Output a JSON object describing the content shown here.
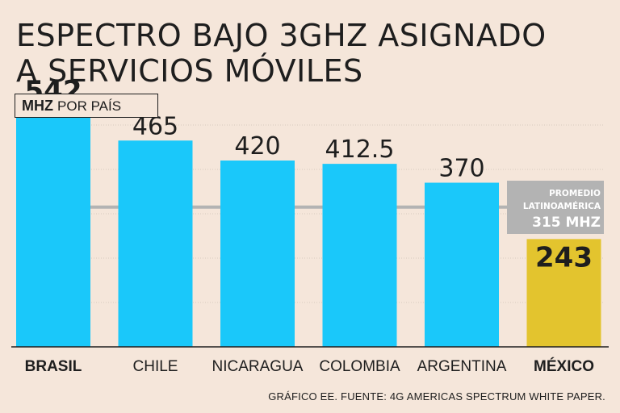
{
  "header": {
    "title_line1": "ESPECTRO BAJO 3GHZ ASIGNADO",
    "title_line2": "A SERVICIOS MÓVILES",
    "unit_bold": "MHZ",
    "unit_rest": "POR PAÍS"
  },
  "footer": {
    "source": "GRÁFICO EE. FUENTE: 4G AMERICAS SPECTRUM WHITE PAPER."
  },
  "colors": {
    "background": "#f5e6da",
    "bar": "#1ac8fa",
    "highlight_bar": "#e3c42e",
    "average_line": "#b3b3b3",
    "average_box": "#b3b3b3",
    "text": "#1e1e1e",
    "grid": "#d7c9bf"
  },
  "chart_data": {
    "type": "bar",
    "title": "ESPECTRO BAJO 3GHZ ASIGNADO A SERVICIOS MÓVILES",
    "ylabel": "MHZ POR PAÍS",
    "xlabel": "",
    "categories": [
      "BRASIL",
      "CHILE",
      "NICARAGUA",
      "COLOMBIA",
      "ARGENTINA",
      "MÉXICO"
    ],
    "values": [
      542,
      465,
      420,
      412.5,
      370,
      243
    ],
    "value_labels": [
      "542",
      "465",
      "420",
      "412.5",
      "370",
      "243"
    ],
    "bold_categories": [
      "BRASIL",
      "MÉXICO"
    ],
    "highlight_category": "MÉXICO",
    "ylim": [
      0,
      600
    ],
    "grid": true,
    "reference_line": {
      "value": 315,
      "label_line1": "PROMEDIO",
      "label_line2": "LATINOAMÉRICA",
      "label_line3": "315 MHZ"
    }
  }
}
